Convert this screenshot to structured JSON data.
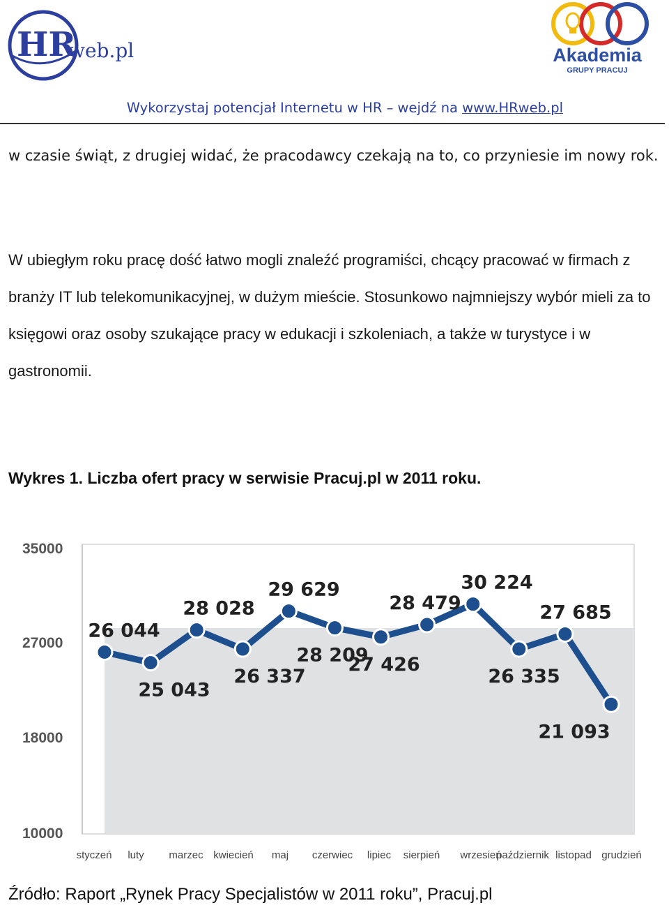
{
  "header": {
    "hr_logo": {
      "text_hr": "HR",
      "text_web": "web.pl"
    },
    "akademia_logo": {
      "name": "Akademia",
      "sub": "GRUPY PRACUJ"
    },
    "tagline_prefix": "Wykorzystaj potencjał Internetu w HR – wejdź na ",
    "tagline_link": "www.HRweb.pl",
    "brand_color": "#2d3f9e"
  },
  "body": {
    "para_1": "w czasie świąt, z drugiej widać, że pracodawcy czekają na to, co przyniesie im nowy rok.",
    "para_2": "W ubiegłym roku pracę dość łatwo mogli znaleźć programiści, chcący pracować w firmach z branży IT lub telekomunikacyjnej, w dużym mieście. Stosunkowo najmniejszy wybór mieli za to księgowi oraz osoby szukające pracy w edukacji i szkoleniach, a także w turystyce i w gastronomii.",
    "chart_caption": "Wykres 1. Liczba ofert pracy w serwisie Pracuj.pl w 2011 roku.",
    "source": "Źródło: Raport „Rynek Pracy Specjalistów w 2011 roku”, Pracuj.pl"
  },
  "chart_data": {
    "type": "line",
    "title": "",
    "xlabel": "",
    "ylabel": "",
    "categories": [
      "styczeń",
      "luty",
      "marzec",
      "kwiecień",
      "maj",
      "czerwiec",
      "lipiec",
      "sierpień",
      "wrzesień",
      "październik",
      "listopad",
      "grudzień"
    ],
    "series": [
      {
        "values": [
          26044,
          25043,
          28028,
          26337,
          29629,
          28209,
          27426,
          28479,
          30224,
          26335,
          27685,
          21093
        ],
        "labels": [
          "26 044",
          "25 043",
          "28 028",
          "26 337",
          "29 629",
          "28 209",
          "27 426",
          "28 479",
          "30 224",
          "26 335",
          "27 685",
          "21 093"
        ]
      }
    ],
    "y_ticks": [
      10000,
      18000,
      27000,
      35000
    ],
    "y_tick_labels": [
      "10000",
      "18000",
      "27000",
      "35000"
    ],
    "y_scale": "nonlinear, ticks evenly spaced",
    "grid": false,
    "colors": {
      "line": "#1d4e8e",
      "fill": "#e0e1e3",
      "axis": "#c8c8c8"
    }
  }
}
